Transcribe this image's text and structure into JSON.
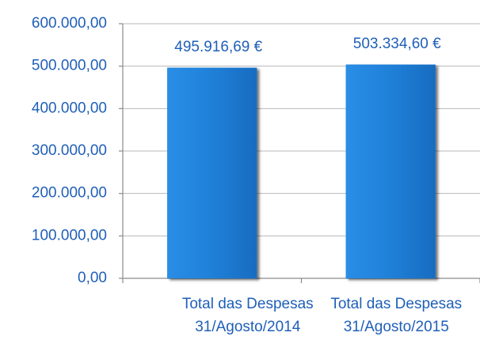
{
  "chart_data": {
    "type": "bar",
    "categories": [
      [
        "Total das Despesas",
        "31/Agosto/2014"
      ],
      [
        "Total das Despesas",
        "31/Agosto/2015"
      ]
    ],
    "values": [
      495916.69,
      503334.6
    ],
    "value_labels": [
      "495.916,69 €",
      "503.334,60 €"
    ],
    "color": "#1f80d8",
    "ylim": [
      0,
      600000
    ],
    "yticks": [
      {
        "value": 0,
        "label": "0,00"
      },
      {
        "value": 100000,
        "label": "100.000,00"
      },
      {
        "value": 200000,
        "label": "200.000,00"
      },
      {
        "value": 300000,
        "label": "300.000,00"
      },
      {
        "value": 400000,
        "label": "400.000,00"
      },
      {
        "value": 500000,
        "label": "500.000,00"
      },
      {
        "value": 600000,
        "label": "600.000,00"
      }
    ],
    "grid": true
  }
}
